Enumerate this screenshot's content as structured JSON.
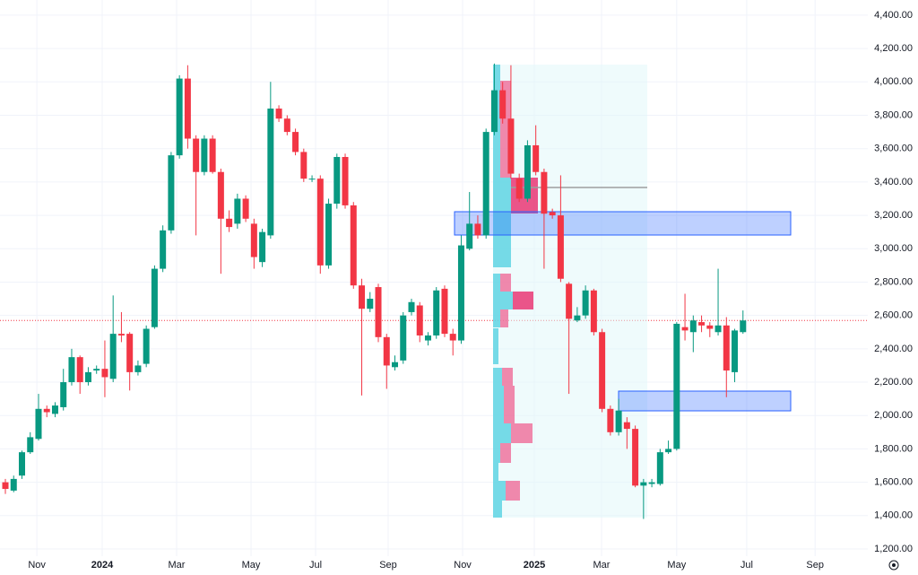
{
  "chart_data": {
    "type": "candlestick",
    "up_color": "#089981",
    "down_color": "#f23645",
    "open": [
      1600,
      1550,
      1640,
      1780,
      1860,
      2040,
      2010,
      2050,
      2200,
      2350,
      2200,
      2270,
      2280,
      2220,
      2490,
      2490,
      2260,
      2310,
      2530,
      2880,
      3110,
      3560,
      4020,
      3660,
      3460,
      3660,
      3460,
      3180,
      3150,
      3300,
      3150,
      2920,
      3080,
      3840,
      3780,
      3700,
      3580,
      3420,
      3420,
      2900,
      3270,
      3550,
      3260,
      2780,
      2640,
      2770,
      2470,
      2290,
      2330,
      2620,
      2660,
      2450,
      2480,
      2760,
      2490,
      2450,
      3000,
      3150,
      3080,
      3700,
      3950,
      3780,
      3420,
      3300,
      3620,
      3460,
      3220,
      3200,
      2790,
      2570,
      2600,
      2750,
      2500,
      2040,
      1900,
      1960,
      1920,
      1580,
      1590,
      1590,
      1780,
      1800,
      2530,
      2500,
      2560,
      2540,
      2500,
      2540,
      2260,
      2500
    ],
    "high": [
      1620,
      1640,
      1790,
      1900,
      2130,
      2060,
      2080,
      2280,
      2400,
      2360,
      2290,
      2300,
      2450,
      2720,
      2620,
      2500,
      2330,
      2540,
      2900,
      3140,
      3580,
      4040,
      4100,
      3680,
      3680,
      3680,
      3480,
      3230,
      3330,
      3320,
      3180,
      3120,
      4000,
      3860,
      3800,
      3720,
      3600,
      3440,
      3440,
      3300,
      3570,
      3570,
      3280,
      2820,
      2740,
      2790,
      2490,
      2360,
      2620,
      2700,
      2680,
      2500,
      2770,
      2780,
      2520,
      3080,
      3340,
      3200,
      3720,
      4110,
      4000,
      4100,
      3450,
      3650,
      3740,
      3480,
      3240,
      3440,
      2800,
      2650,
      2780,
      2760,
      2520,
      2060,
      2100,
      1990,
      1940,
      1620,
      1620,
      1800,
      1850,
      2560,
      2730,
      2600,
      2600,
      2560,
      2880,
      2590,
      2520,
      2630
    ],
    "low": [
      1530,
      1540,
      1620,
      1770,
      1850,
      1990,
      1990,
      2030,
      2180,
      2130,
      2180,
      2250,
      2110,
      2200,
      2440,
      2150,
      2240,
      2290,
      2520,
      2860,
      3090,
      3540,
      3600,
      3080,
      3440,
      3450,
      2850,
      3100,
      3120,
      3160,
      2880,
      2890,
      3060,
      3760,
      3680,
      3560,
      3400,
      3400,
      2850,
      2880,
      3240,
      3240,
      2760,
      2120,
      2620,
      2440,
      2160,
      2270,
      2310,
      2600,
      2440,
      2420,
      2460,
      2470,
      2360,
      2430,
      2990,
      3060,
      3060,
      3680,
      3750,
      3420,
      3280,
      3280,
      3440,
      2880,
      3180,
      2800,
      2130,
      2560,
      2580,
      2480,
      2020,
      1880,
      1880,
      1800,
      1570,
      1380,
      1570,
      1580,
      1770,
      1790,
      2450,
      2380,
      2500,
      2470,
      2480,
      2110,
      2200,
      2490
    ],
    "close": [
      1560,
      1620,
      1780,
      1870,
      2040,
      2020,
      2060,
      2200,
      2350,
      2200,
      2260,
      2280,
      2230,
      2490,
      2480,
      2260,
      2300,
      2520,
      2880,
      3110,
      3560,
      4020,
      3660,
      3460,
      3660,
      3460,
      3180,
      3130,
      3300,
      3180,
      2950,
      3100,
      3840,
      3780,
      3700,
      3580,
      3420,
      3420,
      2900,
      3270,
      3550,
      3260,
      2780,
      2640,
      2700,
      2470,
      2300,
      2320,
      2600,
      2680,
      2480,
      2480,
      2750,
      2490,
      2450,
      3020,
      3150,
      3080,
      3700,
      3950,
      3780,
      3450,
      3300,
      3620,
      3460,
      3210,
      3200,
      2820,
      2580,
      2600,
      2750,
      2500,
      2040,
      1900,
      2030,
      1920,
      1580,
      1600,
      1600,
      1780,
      1800,
      2550,
      2510,
      2570,
      2540,
      2520,
      2540,
      2270,
      2510,
      2570
    ],
    "xlim": [
      -0.65,
      104.06
    ],
    "xticks": [
      {
        "value": 3.8,
        "label": "Nov"
      },
      {
        "value": 11.68,
        "label": "2024"
      },
      {
        "value": 20.66,
        "label": "Mar"
      },
      {
        "value": 29.64,
        "label": "May"
      },
      {
        "value": 37.43,
        "label": "Jul"
      },
      {
        "value": 46.19,
        "label": "Sep"
      },
      {
        "value": 55.17,
        "label": "Nov"
      },
      {
        "value": 63.82,
        "label": "2025"
      },
      {
        "value": 71.93,
        "label": "Mar"
      },
      {
        "value": 81.0,
        "label": "May"
      },
      {
        "value": 89.45,
        "label": "Jul"
      },
      {
        "value": 97.7,
        "label": "Sep"
      }
    ],
    "ylim": [
      1157,
      4491
    ],
    "yticks": [
      {
        "value": 4400,
        "label": "4,400.00"
      },
      {
        "value": 4200,
        "label": "4,200.00"
      },
      {
        "value": 4000,
        "label": "4,000.00"
      },
      {
        "value": 3800,
        "label": "3,800.00"
      },
      {
        "value": 3600,
        "label": "3,600.00"
      },
      {
        "value": 3400,
        "label": "3,400.00"
      },
      {
        "value": 3200,
        "label": "3,200.00"
      },
      {
        "value": 3000,
        "label": "3,000.00"
      },
      {
        "value": 2800,
        "label": "2,800.00"
      },
      {
        "value": 2600,
        "label": "2,600.00"
      },
      {
        "value": 2400,
        "label": "2,400.00"
      },
      {
        "value": 2200,
        "label": "2,200.00"
      },
      {
        "value": 2000,
        "label": "2,000.00"
      },
      {
        "value": 1800,
        "label": "1,800.00"
      },
      {
        "value": 1600,
        "label": "1,600.00"
      },
      {
        "value": 1400,
        "label": "1,400.00"
      },
      {
        "value": 1200,
        "label": "1,200.00"
      }
    ],
    "grid": true
  }
}
